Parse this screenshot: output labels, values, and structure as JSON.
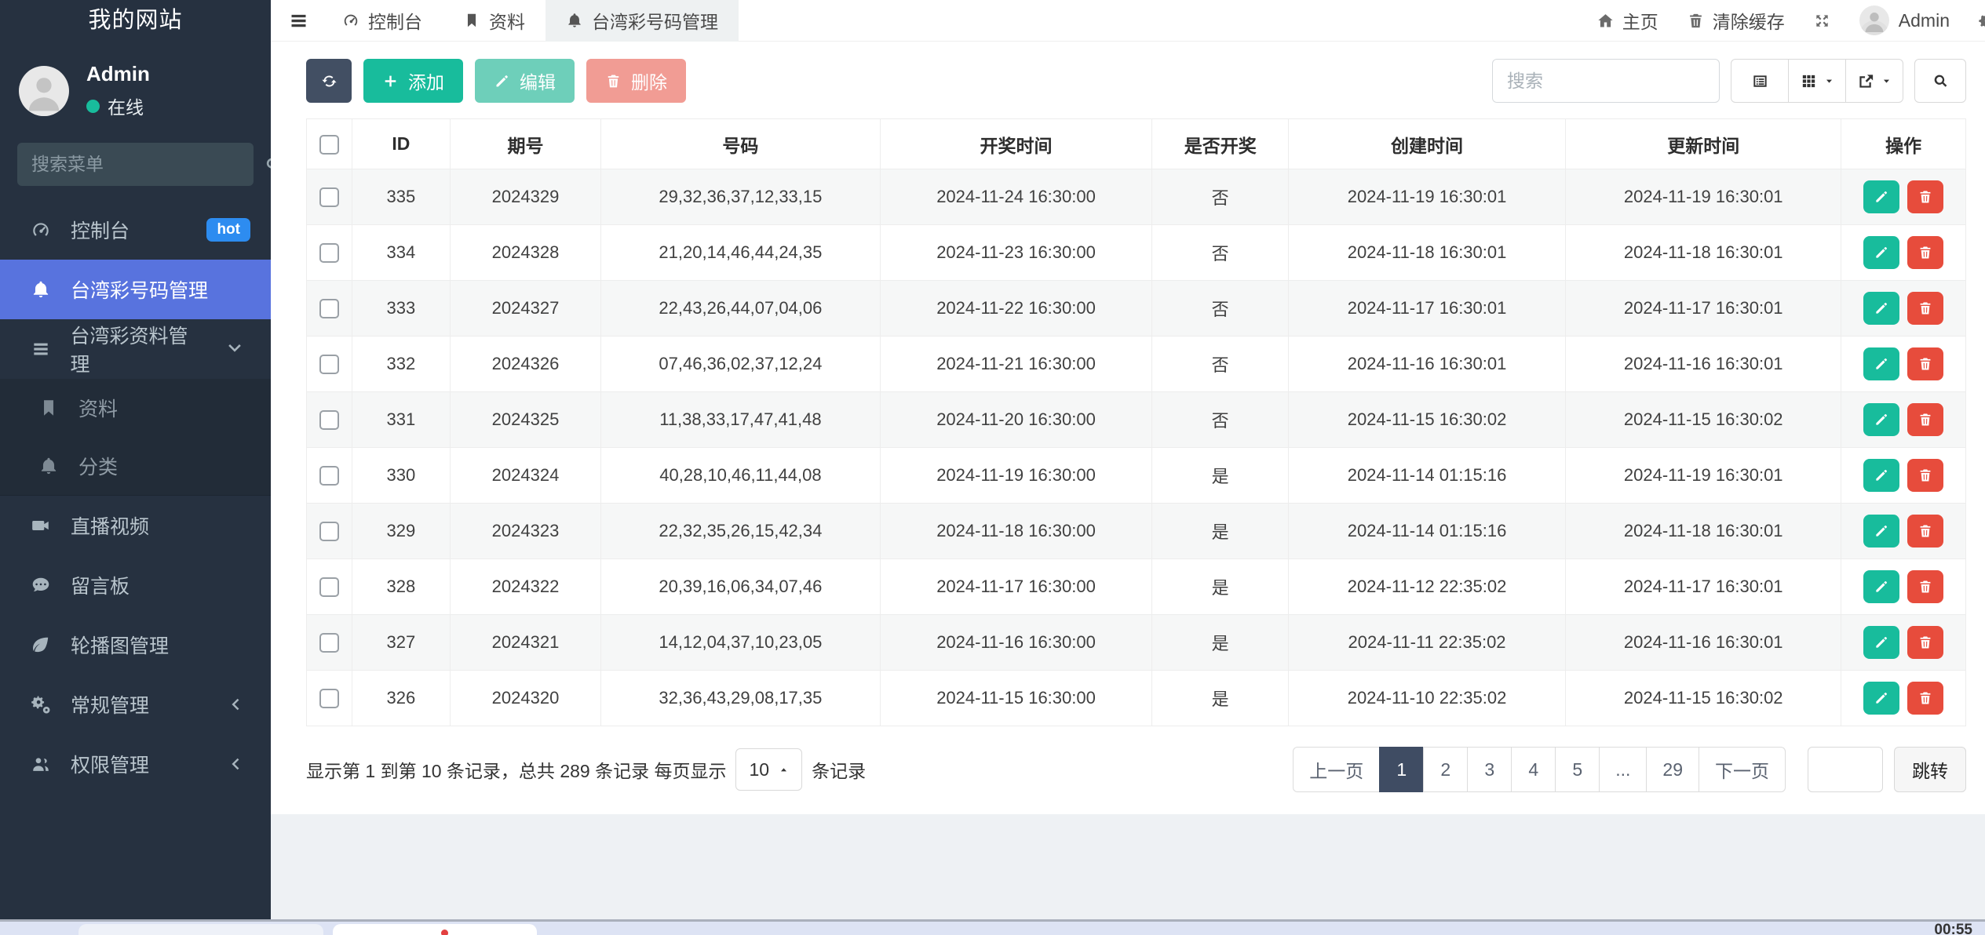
{
  "sidebar": {
    "brand": "我的网站",
    "user": {
      "name": "Admin",
      "status": "在线"
    },
    "search_placeholder": "搜索菜单",
    "items": [
      {
        "name": "dashboard",
        "icon": "gauge-icon",
        "label": "控制台",
        "badge": "hot"
      },
      {
        "name": "taiwan-lottery-numbers",
        "icon": "bell-icon",
        "label": "台湾彩号码管理",
        "active": true
      },
      {
        "name": "taiwan-lottery-data",
        "icon": "bars-icon",
        "label": "台湾彩资料管理",
        "chevron": "down",
        "children": [
          {
            "name": "data",
            "icon": "bookmark-icon",
            "label": "资料"
          },
          {
            "name": "category",
            "icon": "bell-icon",
            "label": "分类"
          }
        ]
      },
      {
        "name": "live-video",
        "icon": "video-icon",
        "label": "直播视频"
      },
      {
        "name": "message-board",
        "icon": "comment-icon",
        "label": "留言板"
      },
      {
        "name": "carousel",
        "icon": "leaf-icon",
        "label": "轮播图管理"
      },
      {
        "name": "general",
        "icon": "cogs-icon",
        "label": "常规管理",
        "chevron": "left"
      },
      {
        "name": "auth",
        "icon": "users-icon",
        "label": "权限管理",
        "chevron": "left"
      }
    ]
  },
  "navbar": {
    "tabs": [
      {
        "name": "dashboard",
        "icon": "gauge-icon",
        "label": "控制台"
      },
      {
        "name": "data",
        "icon": "bookmark-icon",
        "label": "资料"
      },
      {
        "name": "taiwan-lottery-numbers",
        "icon": "bell-icon",
        "label": "台湾彩号码管理",
        "active": true
      }
    ],
    "right": {
      "home": "主页",
      "clear_cache": "清除缓存",
      "user": "Admin"
    }
  },
  "toolbar": {
    "add_label": "添加",
    "edit_label": "编辑",
    "delete_label": "删除",
    "search_placeholder": "搜索"
  },
  "table": {
    "columns": [
      "ID",
      "期号",
      "号码",
      "开奖时间",
      "是否开奖",
      "创建时间",
      "更新时间",
      "操作"
    ],
    "rows": [
      {
        "id": "335",
        "issue": "2024329",
        "numbers": "29,32,36,37,12,33,15",
        "draw_time": "2024-11-24 16:30:00",
        "drawn": "否",
        "created": "2024-11-19 16:30:01",
        "updated": "2024-11-19 16:30:01"
      },
      {
        "id": "334",
        "issue": "2024328",
        "numbers": "21,20,14,46,44,24,35",
        "draw_time": "2024-11-23 16:30:00",
        "drawn": "否",
        "created": "2024-11-18 16:30:01",
        "updated": "2024-11-18 16:30:01"
      },
      {
        "id": "333",
        "issue": "2024327",
        "numbers": "22,43,26,44,07,04,06",
        "draw_time": "2024-11-22 16:30:00",
        "drawn": "否",
        "created": "2024-11-17 16:30:01",
        "updated": "2024-11-17 16:30:01"
      },
      {
        "id": "332",
        "issue": "2024326",
        "numbers": "07,46,36,02,37,12,24",
        "draw_time": "2024-11-21 16:30:00",
        "drawn": "否",
        "created": "2024-11-16 16:30:01",
        "updated": "2024-11-16 16:30:01"
      },
      {
        "id": "331",
        "issue": "2024325",
        "numbers": "11,38,33,17,47,41,48",
        "draw_time": "2024-11-20 16:30:00",
        "drawn": "否",
        "created": "2024-11-15 16:30:02",
        "updated": "2024-11-15 16:30:02"
      },
      {
        "id": "330",
        "issue": "2024324",
        "numbers": "40,28,10,46,11,44,08",
        "draw_time": "2024-11-19 16:30:00",
        "drawn": "是",
        "created": "2024-11-14 01:15:16",
        "updated": "2024-11-19 16:30:01"
      },
      {
        "id": "329",
        "issue": "2024323",
        "numbers": "22,32,35,26,15,42,34",
        "draw_time": "2024-11-18 16:30:00",
        "drawn": "是",
        "created": "2024-11-14 01:15:16",
        "updated": "2024-11-18 16:30:01"
      },
      {
        "id": "328",
        "issue": "2024322",
        "numbers": "20,39,16,06,34,07,46",
        "draw_time": "2024-11-17 16:30:00",
        "drawn": "是",
        "created": "2024-11-12 22:35:02",
        "updated": "2024-11-17 16:30:01"
      },
      {
        "id": "327",
        "issue": "2024321",
        "numbers": "14,12,04,37,10,23,05",
        "draw_time": "2024-11-16 16:30:00",
        "drawn": "是",
        "created": "2024-11-11 22:35:02",
        "updated": "2024-11-16 16:30:01"
      },
      {
        "id": "326",
        "issue": "2024320",
        "numbers": "32,36,43,29,08,17,35",
        "draw_time": "2024-11-15 16:30:00",
        "drawn": "是",
        "created": "2024-11-10 22:35:02",
        "updated": "2024-11-15 16:30:02"
      }
    ]
  },
  "footer": {
    "stats_prefix": "显示第 1 到第 10 条记录，总共 289 条记录 每页显示",
    "page_size": "10",
    "stats_suffix": "条记录",
    "pages": [
      "上一页",
      "1",
      "2",
      "3",
      "4",
      "5",
      "...",
      "29",
      "下一页"
    ],
    "active_page": "1",
    "jump_label": "跳转"
  },
  "bottom_bar": {
    "clock": "00:55"
  },
  "colors": {
    "accent": "#5873de",
    "teal": "#18bc9c",
    "red": "#e74c3c",
    "navy": "#424f63",
    "badge_blue": "#2d8cf0",
    "sidebar_bg": "#263140"
  }
}
